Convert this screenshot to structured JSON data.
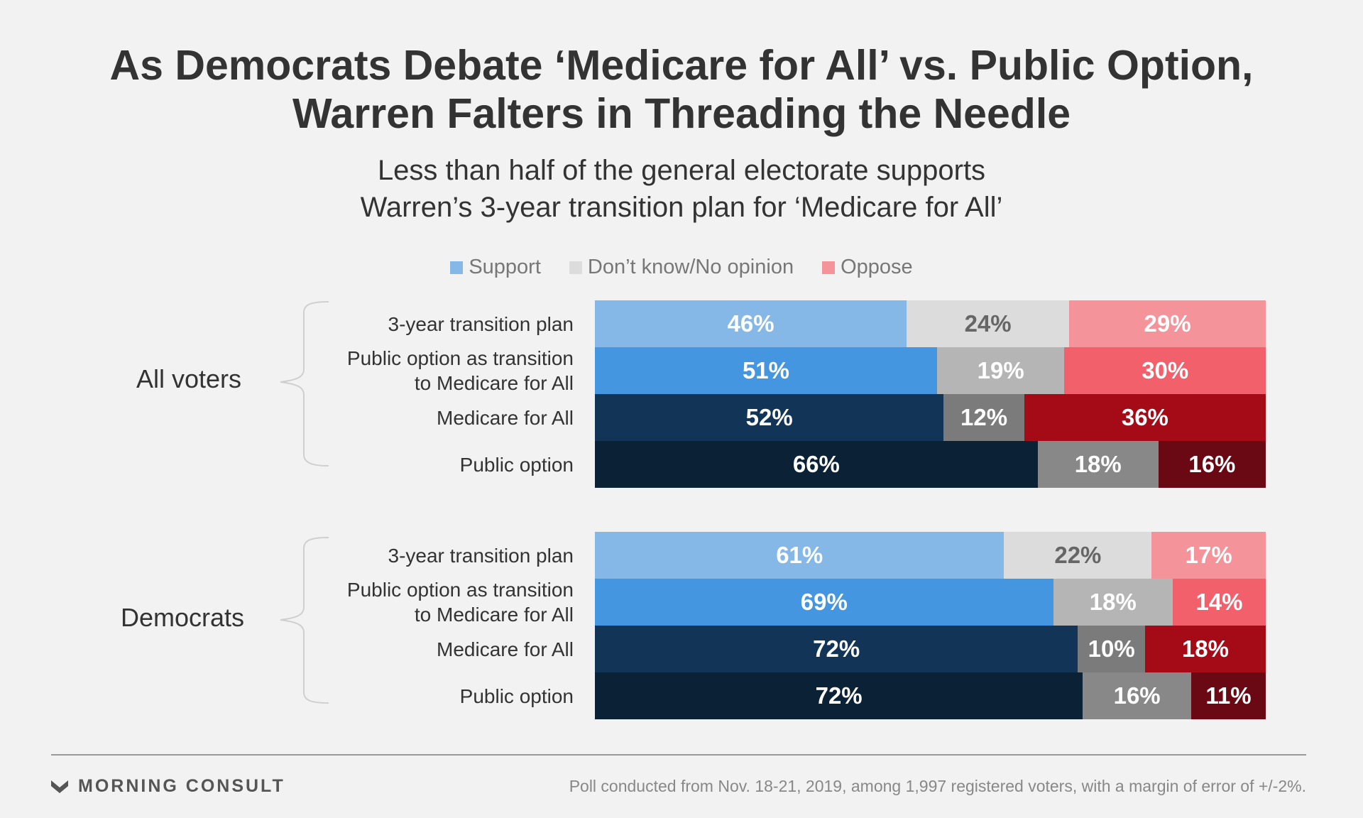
{
  "title": {
    "line1": "As Democrats Debate ‘Medicare for All’ vs. Public Option,",
    "line2": "Warren Falters in Threading the Needle"
  },
  "subtitle": {
    "line1": "Less than half of the general electorate supports",
    "line2": "Warren’s 3-year transition plan for ‘Medicare for All’"
  },
  "legend": [
    {
      "label": "Support",
      "color": "#85b8e6"
    },
    {
      "label": "Don’t know/No opinion",
      "color": "#dcdcdc"
    },
    {
      "label": "Oppose",
      "color": "#f4939a"
    }
  ],
  "chart_data": {
    "type": "bar",
    "orientation": "horizontal",
    "stacked": true,
    "legend_placement": "top",
    "grid": false,
    "series_names": [
      "Support",
      "Don’t know/No opinion",
      "Oppose"
    ],
    "groups": [
      {
        "name": "All voters",
        "rows": [
          {
            "label": [
              "3-year transition plan"
            ],
            "values": [
              46,
              24,
              29
            ],
            "labels": [
              "46%",
              "24%",
              "29%"
            ]
          },
          {
            "label": [
              "Public option as transition",
              "to Medicare for All"
            ],
            "values": [
              51,
              19,
              30
            ],
            "labels": [
              "51%",
              "19%",
              "30%"
            ]
          },
          {
            "label": [
              "Medicare for All"
            ],
            "values": [
              52,
              12,
              36
            ],
            "labels": [
              "52%",
              "12%",
              "36%"
            ]
          },
          {
            "label": [
              "Public option"
            ],
            "values": [
              66,
              18,
              16
            ],
            "labels": [
              "66%",
              "18%",
              "16%"
            ]
          }
        ]
      },
      {
        "name": "Democrats",
        "rows": [
          {
            "label": [
              "3-year transition plan"
            ],
            "values": [
              61,
              22,
              17
            ],
            "labels": [
              "61%",
              "22%",
              "17%"
            ]
          },
          {
            "label": [
              "Public option as transition",
              "to Medicare for All"
            ],
            "values": [
              69,
              18,
              14
            ],
            "labels": [
              "69%",
              "18%",
              "14%"
            ]
          },
          {
            "label": [
              "Medicare for All"
            ],
            "values": [
              72,
              10,
              18
            ],
            "labels": [
              "72%",
              "10%",
              "18%"
            ]
          },
          {
            "label": [
              "Public option"
            ],
            "values": [
              72,
              16,
              11
            ],
            "labels": [
              "72%",
              "16%",
              "11%"
            ]
          }
        ]
      }
    ],
    "row_colors": [
      [
        "#85b8e6",
        "#dcdcdc",
        "#f4939a"
      ],
      [
        "#4396df",
        "#b5b5b5",
        "#f2616b"
      ],
      [
        "#113457",
        "#7b7b7b",
        "#a50a17"
      ],
      [
        "#0b2136",
        "#888888",
        "#6a0813"
      ]
    ],
    "row_text_colors": [
      [
        "#ffffff",
        "#666666",
        "#ffffff"
      ],
      [
        "#ffffff",
        "#ffffff",
        "#ffffff"
      ],
      [
        "#ffffff",
        "#ffffff",
        "#ffffff"
      ],
      [
        "#ffffff",
        "#ffffff",
        "#ffffff"
      ]
    ]
  },
  "footer": {
    "brand": "MORNING CONSULT",
    "note": "Poll conducted from Nov. 18-21, 2019, among 1,997 registered voters, with a margin of error of +/-2%."
  }
}
